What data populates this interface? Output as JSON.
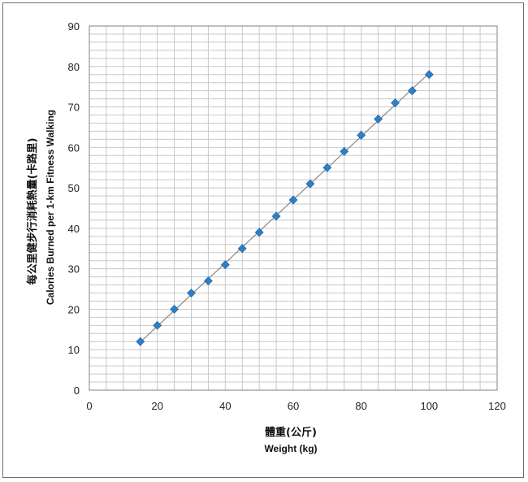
{
  "chart_data": {
    "type": "scatter",
    "title": "",
    "xlabel_lines": [
      "體重(公斤)",
      "Weight (kg)"
    ],
    "ylabel_lines": [
      "每公里健步行消耗熱量(卡路里)",
      "Calories Burned per 1-km Fitness Walking"
    ],
    "xlim": [
      0,
      120
    ],
    "ylim": [
      0,
      90
    ],
    "x_ticks": [
      0,
      20,
      40,
      60,
      80,
      100,
      120
    ],
    "y_ticks": [
      0,
      10,
      20,
      30,
      40,
      50,
      60,
      70,
      80,
      90
    ],
    "grid": true,
    "legend": "none",
    "series": [
      {
        "marker": "diamond",
        "color": "#2e7fc4",
        "trendline": true,
        "x": [
          15,
          20,
          25,
          30,
          35,
          40,
          45,
          50,
          55,
          60,
          65,
          70,
          75,
          80,
          85,
          90,
          95,
          100
        ],
        "y": [
          12,
          16,
          20,
          24,
          27,
          31,
          35,
          39,
          43,
          47,
          51,
          55,
          59,
          63,
          67,
          71,
          74,
          78
        ]
      }
    ]
  },
  "colors": {
    "grid": "#c8c8c8",
    "axis": "#808080",
    "trendline": "#888888",
    "marker": "#2e7fc4",
    "frame": "#707070"
  }
}
